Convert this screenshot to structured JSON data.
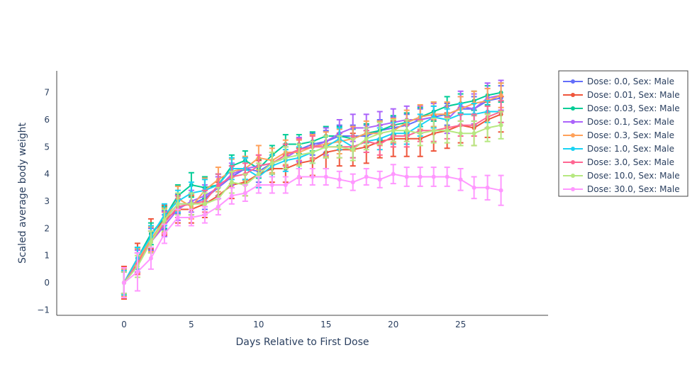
{
  "chart_data": {
    "type": "line",
    "xlabel": "Days Relative to First Dose",
    "ylabel": "Scaled average body weight",
    "xlim": [
      -5,
      31.5
    ],
    "ylim": [
      -1.2,
      7.8
    ],
    "x_ticks": [
      0,
      5,
      10,
      15,
      20,
      25
    ],
    "y_ticks": [
      -1,
      0,
      1,
      2,
      3,
      4,
      5,
      6,
      7
    ],
    "grid": false,
    "error_bars": true,
    "legend_position": "top-right",
    "x": [
      0,
      1,
      2,
      3,
      4,
      5,
      6,
      7,
      8,
      9,
      10,
      11,
      12,
      13,
      14,
      15,
      16,
      17,
      18,
      19,
      20,
      21,
      22,
      23,
      24,
      25,
      26,
      27,
      28
    ],
    "series": [
      {
        "name": "Dose: 0.0, Sex: Male",
        "color": "#636efa",
        "values": [
          0,
          0.7,
          1.6,
          2.3,
          2.9,
          2.9,
          3.1,
          3.5,
          3.9,
          4.2,
          4.1,
          4.4,
          4.7,
          4.9,
          5.1,
          5.2,
          5.4,
          5.4,
          5.4,
          5.6,
          5.7,
          5.8,
          6.0,
          6.1,
          6.2,
          6.4,
          6.4,
          6.7,
          6.8
        ],
        "errors": [
          0.4,
          0.4,
          0.4,
          0.35,
          0.35,
          0.4,
          0.4,
          0.4,
          0.4,
          0.4,
          0.4,
          0.4,
          0.4,
          0.4,
          0.4,
          0.4,
          0.4,
          0.4,
          0.4,
          0.4,
          0.4,
          0.4,
          0.4,
          0.4,
          0.4,
          0.45,
          0.45,
          0.45,
          0.45
        ]
      },
      {
        "name": "Dose: 0.01, Sex: Male",
        "color": "#ef553b",
        "values": [
          0,
          0.9,
          1.8,
          2.3,
          2.7,
          2.7,
          2.9,
          3.2,
          3.6,
          3.7,
          4.0,
          4.2,
          4.2,
          4.4,
          4.5,
          4.8,
          4.9,
          4.9,
          5.0,
          5.2,
          5.3,
          5.3,
          5.3,
          5.5,
          5.6,
          5.8,
          5.7,
          6.0,
          6.2
        ],
        "errors": [
          0.6,
          0.55,
          0.55,
          0.55,
          0.5,
          0.5,
          0.5,
          0.5,
          0.5,
          0.5,
          0.5,
          0.5,
          0.5,
          0.55,
          0.55,
          0.6,
          0.6,
          0.6,
          0.6,
          0.6,
          0.65,
          0.65,
          0.65,
          0.65,
          0.65,
          0.65,
          0.65,
          0.65,
          0.65
        ]
      },
      {
        "name": "Dose: 0.03, Sex: Male",
        "color": "#00cc96",
        "values": [
          0,
          0.9,
          1.8,
          2.4,
          3.2,
          3.6,
          3.5,
          3.6,
          4.3,
          4.5,
          4.2,
          4.7,
          5.1,
          5.1,
          5.2,
          5.4,
          5.4,
          5.3,
          5.5,
          5.6,
          5.8,
          5.9,
          6.1,
          6.3,
          6.5,
          6.6,
          6.7,
          6.9,
          7.0
        ],
        "errors": [
          0.4,
          0.4,
          0.4,
          0.4,
          0.4,
          0.45,
          0.4,
          0.4,
          0.4,
          0.35,
          0.35,
          0.35,
          0.35,
          0.35,
          0.35,
          0.35,
          0.35,
          0.35,
          0.35,
          0.35,
          0.35,
          0.35,
          0.35,
          0.35,
          0.35,
          0.35,
          0.35,
          0.35,
          0.35
        ]
      },
      {
        "name": "Dose: 0.1, Sex: Male",
        "color": "#ab63fa",
        "values": [
          0,
          0.8,
          1.5,
          2.1,
          2.7,
          3.0,
          3.2,
          3.5,
          4.0,
          4.2,
          4.3,
          4.4,
          4.6,
          4.9,
          5.0,
          5.2,
          5.5,
          5.7,
          5.7,
          5.8,
          5.9,
          6.0,
          6.0,
          6.1,
          6.0,
          6.5,
          6.4,
          6.8,
          6.9
        ],
        "errors": [
          0.4,
          0.4,
          0.4,
          0.4,
          0.4,
          0.4,
          0.4,
          0.4,
          0.4,
          0.4,
          0.4,
          0.4,
          0.4,
          0.45,
          0.45,
          0.5,
          0.5,
          0.5,
          0.5,
          0.5,
          0.5,
          0.5,
          0.5,
          0.5,
          0.5,
          0.55,
          0.55,
          0.55,
          0.55
        ]
      },
      {
        "name": "Dose: 0.3, Sex: Male",
        "color": "#ffa15a",
        "values": [
          0,
          0.8,
          1.6,
          2.3,
          3.1,
          2.8,
          3.4,
          3.8,
          4.1,
          4.2,
          4.6,
          4.5,
          4.8,
          4.8,
          5.0,
          5.1,
          5.2,
          5.3,
          5.5,
          5.5,
          5.6,
          5.9,
          6.1,
          6.2,
          6.2,
          6.4,
          6.6,
          6.7,
          6.9
        ],
        "errors": [
          0.5,
          0.45,
          0.45,
          0.45,
          0.45,
          0.45,
          0.45,
          0.45,
          0.45,
          0.45,
          0.45,
          0.45,
          0.45,
          0.45,
          0.45,
          0.45,
          0.45,
          0.45,
          0.45,
          0.45,
          0.45,
          0.45,
          0.45,
          0.45,
          0.45,
          0.45,
          0.45,
          0.45,
          0.45
        ]
      },
      {
        "name": "Dose: 1.0, Sex: Male",
        "color": "#19d3f3",
        "values": [
          0,
          0.9,
          1.7,
          2.5,
          3.0,
          3.3,
          3.4,
          3.6,
          4.2,
          4.2,
          3.9,
          4.3,
          4.5,
          4.6,
          4.8,
          5.0,
          5.3,
          5.0,
          5.2,
          5.3,
          5.5,
          5.5,
          5.8,
          6.1,
          6.0,
          6.2,
          6.2,
          6.3,
          6.3
        ],
        "errors": [
          0.45,
          0.4,
          0.4,
          0.4,
          0.4,
          0.4,
          0.4,
          0.4,
          0.4,
          0.4,
          0.4,
          0.4,
          0.4,
          0.4,
          0.4,
          0.4,
          0.4,
          0.4,
          0.4,
          0.4,
          0.4,
          0.4,
          0.4,
          0.4,
          0.4,
          0.4,
          0.4,
          0.4,
          0.4
        ]
      },
      {
        "name": "Dose: 3.0, Sex: Male",
        "color": "#ff6692",
        "values": [
          0,
          0.7,
          1.5,
          2.2,
          2.8,
          2.9,
          3.0,
          3.6,
          3.9,
          4.0,
          4.3,
          4.4,
          4.7,
          4.9,
          5.0,
          5.0,
          5.0,
          5.0,
          5.2,
          5.1,
          5.4,
          5.4,
          5.6,
          5.6,
          5.7,
          5.8,
          5.8,
          6.1,
          6.3
        ],
        "errors": [
          0.4,
          0.4,
          0.4,
          0.4,
          0.4,
          0.4,
          0.4,
          0.4,
          0.4,
          0.4,
          0.4,
          0.4,
          0.4,
          0.4,
          0.4,
          0.4,
          0.4,
          0.4,
          0.4,
          0.4,
          0.4,
          0.4,
          0.4,
          0.4,
          0.4,
          0.4,
          0.4,
          0.4,
          0.4
        ]
      },
      {
        "name": "Dose: 10.0, Sex: Male",
        "color": "#b6e880",
        "values": [
          0,
          0.6,
          1.5,
          2.3,
          2.9,
          2.9,
          2.9,
          3.1,
          3.7,
          3.6,
          4.0,
          4.4,
          4.6,
          4.7,
          4.8,
          5.0,
          5.0,
          4.9,
          5.3,
          5.5,
          5.6,
          5.6,
          5.5,
          5.6,
          5.6,
          5.5,
          5.5,
          5.7,
          5.8
        ],
        "errors": [
          0.4,
          0.4,
          0.4,
          0.4,
          0.4,
          0.4,
          0.4,
          0.4,
          0.4,
          0.4,
          0.4,
          0.4,
          0.4,
          0.4,
          0.4,
          0.4,
          0.4,
          0.4,
          0.4,
          0.4,
          0.4,
          0.4,
          0.45,
          0.45,
          0.45,
          0.45,
          0.45,
          0.5,
          0.5
        ]
      },
      {
        "name": "Dose: 30.0, Sex: Male",
        "color": "#ff97ff",
        "values": [
          0,
          0.4,
          0.9,
          1.8,
          2.4,
          2.4,
          2.5,
          2.8,
          3.2,
          3.3,
          3.6,
          3.6,
          3.6,
          3.9,
          3.9,
          3.9,
          3.8,
          3.7,
          3.9,
          3.8,
          4.0,
          3.9,
          3.9,
          3.9,
          3.9,
          3.8,
          3.5,
          3.5,
          3.4
        ],
        "errors": [
          0.55,
          0.7,
          0.4,
          0.35,
          0.3,
          0.3,
          0.3,
          0.3,
          0.3,
          0.3,
          0.3,
          0.3,
          0.3,
          0.3,
          0.3,
          0.3,
          0.3,
          0.3,
          0.3,
          0.3,
          0.35,
          0.35,
          0.35,
          0.35,
          0.35,
          0.4,
          0.4,
          0.45,
          0.55
        ]
      }
    ]
  }
}
